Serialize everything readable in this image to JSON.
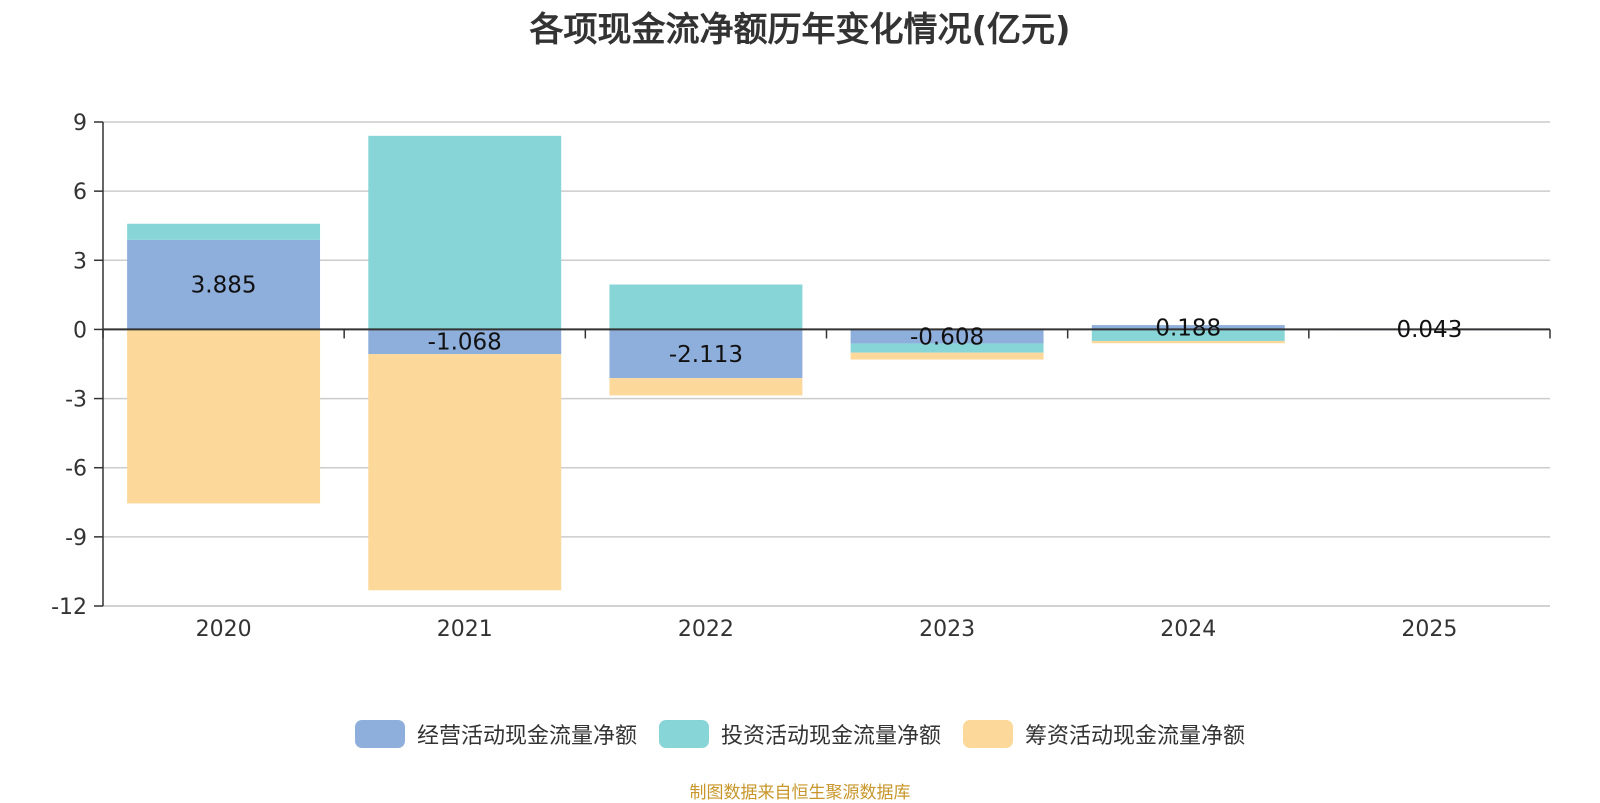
{
  "chart_data": {
    "type": "bar",
    "stacked": true,
    "title": "各项现金流净额历年变化情况(亿元)",
    "categories": [
      "2020",
      "2021",
      "2022",
      "2023",
      "2024",
      "2025"
    ],
    "ylim": [
      -12,
      9
    ],
    "yticks": [
      9,
      6,
      3,
      0,
      -3,
      -6,
      -9,
      -12
    ],
    "grid": true,
    "legend_position": "bottom",
    "series": [
      {
        "name": "经营活动现金流量净额",
        "color": "#8eaedb",
        "values": [
          3.885,
          -1.068,
          -2.113,
          -0.608,
          0.188,
          0.043
        ],
        "labels": [
          "3.885",
          "-1.068",
          "-2.113",
          "-0.608",
          "0.188",
          "0.043"
        ]
      },
      {
        "name": "投资活动现金流量净额",
        "color": "#88d5d8",
        "values": [
          0.7,
          8.4,
          1.95,
          -0.4,
          -0.5,
          0.0
        ]
      },
      {
        "name": "筹资活动现金流量净额",
        "color": "#fdd89b",
        "values": [
          -7.55,
          -10.25,
          -0.75,
          -0.3,
          -0.1,
          0.0
        ]
      }
    ]
  },
  "source": "制图数据来自恒生聚源数据库"
}
